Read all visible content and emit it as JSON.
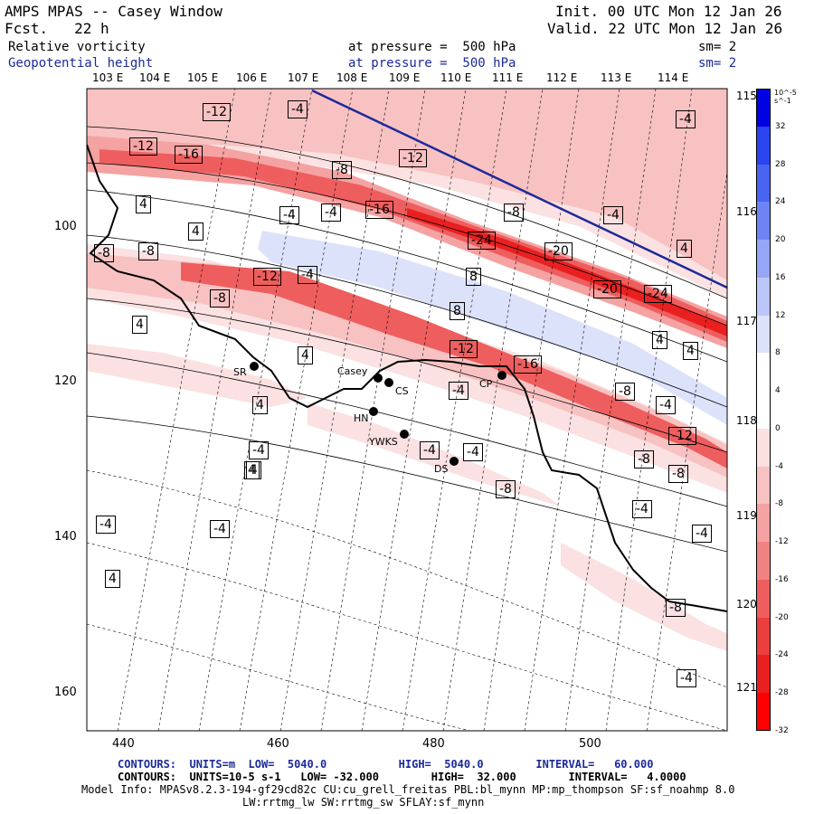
{
  "header": {
    "title": "AMPS MPAS -- Casey Window",
    "forecast": "Fcst.   22 h",
    "init": "Init. 00 UTC Mon 12 Jan 26",
    "valid": "Valid. 22 UTC Mon 12 Jan 26",
    "field1_name": "Relative vorticity",
    "field1_level": "at pressure =  500 hPa",
    "field1_sm": "sm= 2",
    "field2_name": "Geopotential height",
    "field2_level": "at pressure =  500 hPa",
    "field2_sm": "sm= 2"
  },
  "lon_top_labels": [
    "103 E",
    "104 E",
    "105 E",
    "106 E",
    "107 E",
    "108 E",
    "109 E",
    "110 E",
    "111 E",
    "112 E",
    "113 E",
    "114 E"
  ],
  "lon_right_labels": [
    "115 E",
    "116 E",
    "117 E",
    "118 E",
    "119 E",
    "120 E",
    "121 E"
  ],
  "x_axis_ticks": [
    "440",
    "460",
    "480",
    "500"
  ],
  "y_axis_ticks": [
    "100",
    "120",
    "140",
    "160"
  ],
  "stations": [
    {
      "name": "SR"
    },
    {
      "name": "Casey"
    },
    {
      "name": "CS"
    },
    {
      "name": "CP"
    },
    {
      "name": "HN"
    },
    {
      "name": "YWKS"
    },
    {
      "name": "DS"
    }
  ],
  "contour_labels": [
    "-12",
    "-4",
    "-4",
    "-12",
    "-16",
    "-12",
    "-8",
    "4",
    "-4",
    "-16",
    "-8",
    "-4",
    "4",
    "-4",
    "4",
    "-8",
    "-8",
    "-24",
    "-20",
    "-24",
    "-12",
    "-4",
    "-20",
    "8",
    "8",
    "-8",
    "4",
    "-4",
    "4",
    "4",
    "-12",
    "4",
    "-16",
    "-4",
    "4",
    "-8",
    "-4",
    "-12",
    "4",
    "-4",
    "-4",
    "-8",
    "-8",
    "-8",
    "-4",
    "4",
    "-4",
    "-4",
    "-4",
    "4",
    "-8",
    "-4"
  ],
  "colorbar": {
    "unit": "10^-5 s^-1",
    "labels": [
      "32",
      "28",
      "24",
      "20",
      "16",
      "12",
      "8",
      "4",
      "0",
      "-4",
      "-8",
      "-12",
      "-16",
      "-20",
      "-24",
      "-28",
      "-32"
    ],
    "colors": [
      "#0000e0",
      "#2a44f0",
      "#4a64f2",
      "#6e84f4",
      "#96a6f6",
      "#bcc6f8",
      "#dde2fb",
      "#ffffff",
      "#ffffff",
      "#fbe1e1",
      "#f8c2c2",
      "#f5a2a2",
      "#f28282",
      "#ee5e5e",
      "#ec3e3e",
      "#ea2020",
      "#ff0000"
    ]
  },
  "footer": {
    "line1": "CONTOURS:  UNITS=m  LOW=  5040.0           HIGH=  5040.0        INTERVAL=   60.000",
    "line2": "CONTOURS:  UNITS=10-5 s-1   LOW= -32.000        HIGH=  32.000        INTERVAL=   4.0000",
    "line3": "Model Info: MPASv8.2.3-194-gf29cd82c CU:cu_grell_freitas PBL:bl_mynn MP:mp_thompson SF:sf_noahmp 8.0",
    "line4": "LW:rrtmg_lw SW:rrtmg_sw SFLAY:sf_mynn"
  }
}
